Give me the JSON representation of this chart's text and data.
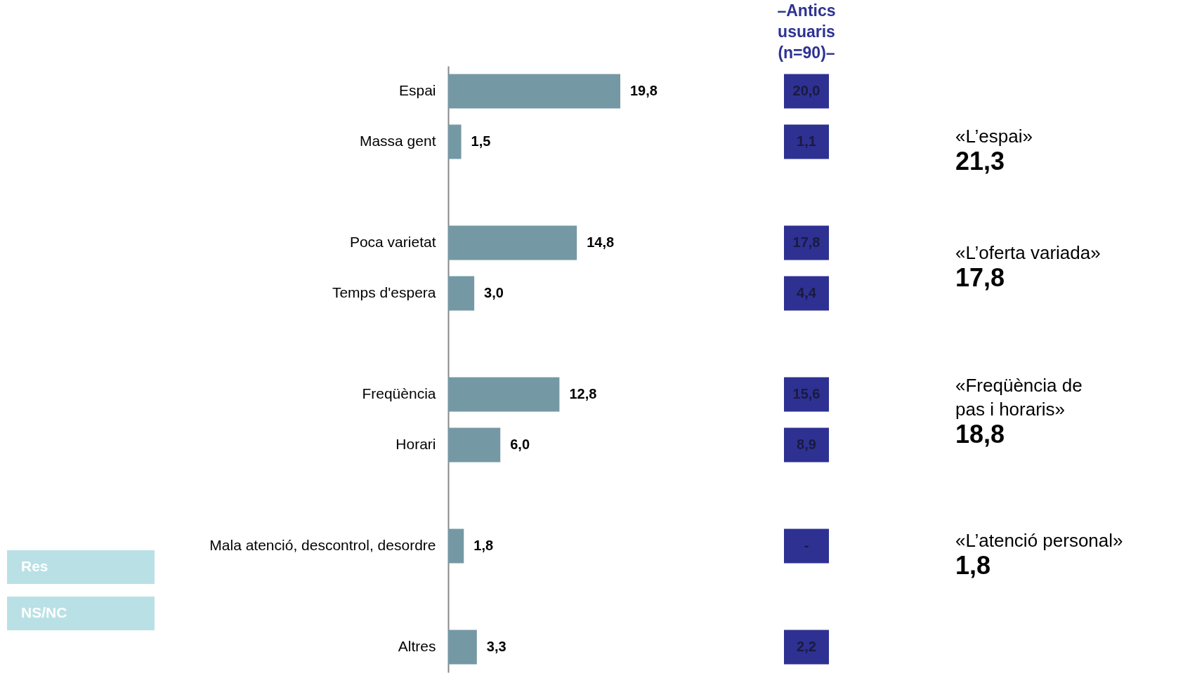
{
  "chart_data": [
    {
      "type": "bar",
      "orientation": "horizontal",
      "categories": [
        "Espai",
        "Massa gent",
        null,
        "Poca varietat",
        "Temps d'espera",
        null,
        "Freqüència",
        "Horari",
        null,
        "Mala atenció, descontrol, desordre",
        null,
        "Altres"
      ],
      "values": [
        19.8,
        1.5,
        null,
        14.8,
        3.0,
        null,
        12.8,
        6.0,
        null,
        1.8,
        null,
        3.3
      ],
      "value_labels": [
        "19,8",
        "1,5",
        null,
        "14,8",
        "3,0",
        null,
        "12,8",
        "6,0",
        null,
        "1,8",
        null,
        "3,3"
      ],
      "color": "#7499a4",
      "annotations": [
        "Res",
        "NS/NC"
      ]
    },
    {
      "type": "other",
      "title": "–Antics\nusuaris\n(n=90)–",
      "annotations": [
        "20,0",
        "1,1",
        "17,8",
        "4,4",
        "15,6",
        "8,9",
        "-",
        "2,2"
      ],
      "color": "#2e3192"
    },
    {
      "type": "other",
      "annotations": [
        "«L’espai»",
        "21,3",
        "«L’oferta variada»",
        "17,8",
        "«Freqüència de\npas i horaris»",
        "18,8",
        "«L’atenció personal»",
        "1,8"
      ]
    }
  ]
}
